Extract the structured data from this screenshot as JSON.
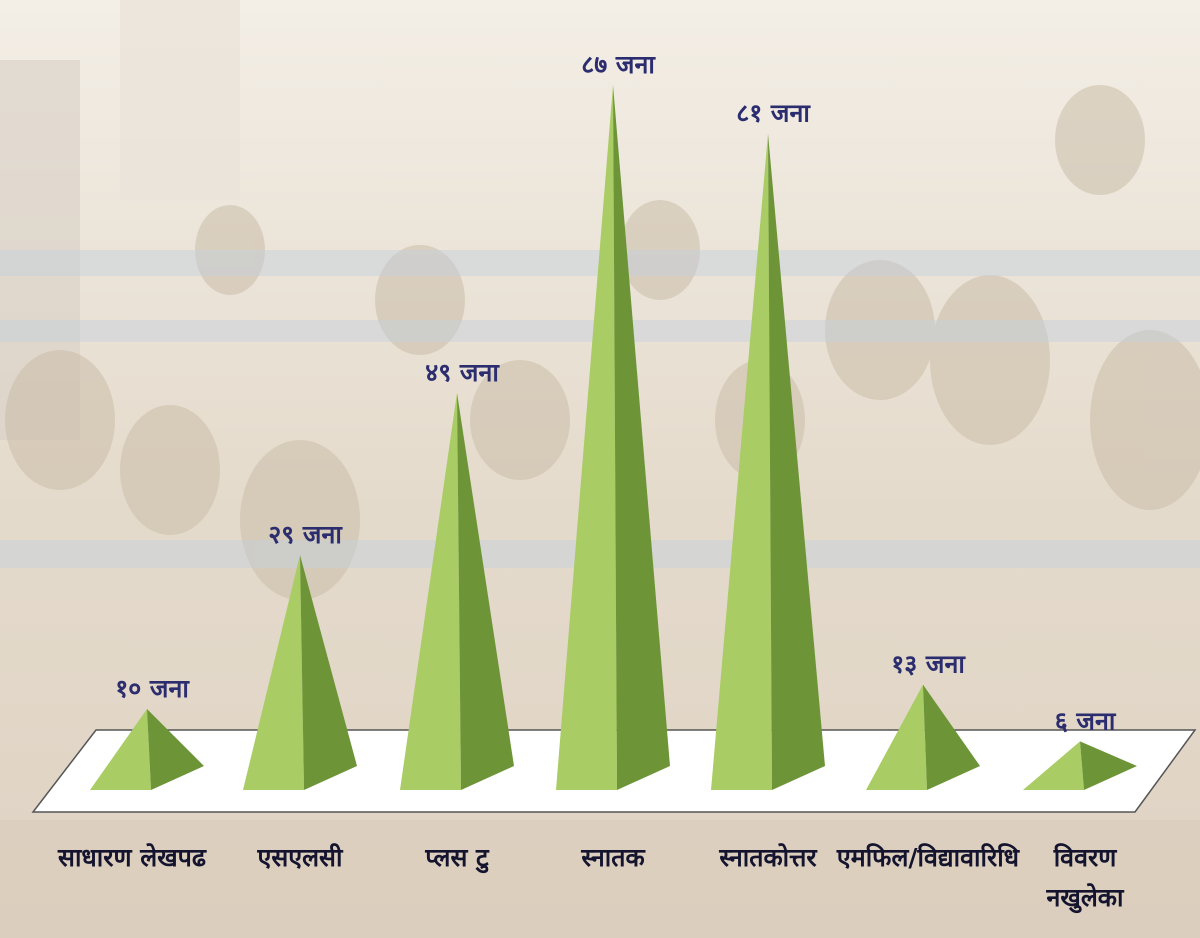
{
  "chart_data": {
    "type": "bar",
    "mark_shape": "pyramid",
    "categories": [
      "साधारण लेखपढ",
      "एसएलसी",
      "प्लस टु",
      "स्नातक",
      "स्नातकोत्तर",
      "एमफिल/विद्यावारिधि",
      "विवरण नखुलेका"
    ],
    "values": [
      10,
      29,
      49,
      87,
      81,
      13,
      6
    ],
    "data_labels": [
      "१० जना",
      "२९ जना",
      "४९ जना",
      "८७ जना",
      "८१ जना",
      "१३ जना",
      "६ जना"
    ],
    "ylim": [
      0,
      87
    ],
    "grid": false,
    "legend": "none",
    "colors": {
      "pyramid_light": "#a9cc64",
      "pyramid_dark": "#6d9538",
      "base_fill": "#ffffff",
      "base_edge": "#555555",
      "label_color": "#2b2d6e",
      "background": "#ece5da"
    }
  }
}
